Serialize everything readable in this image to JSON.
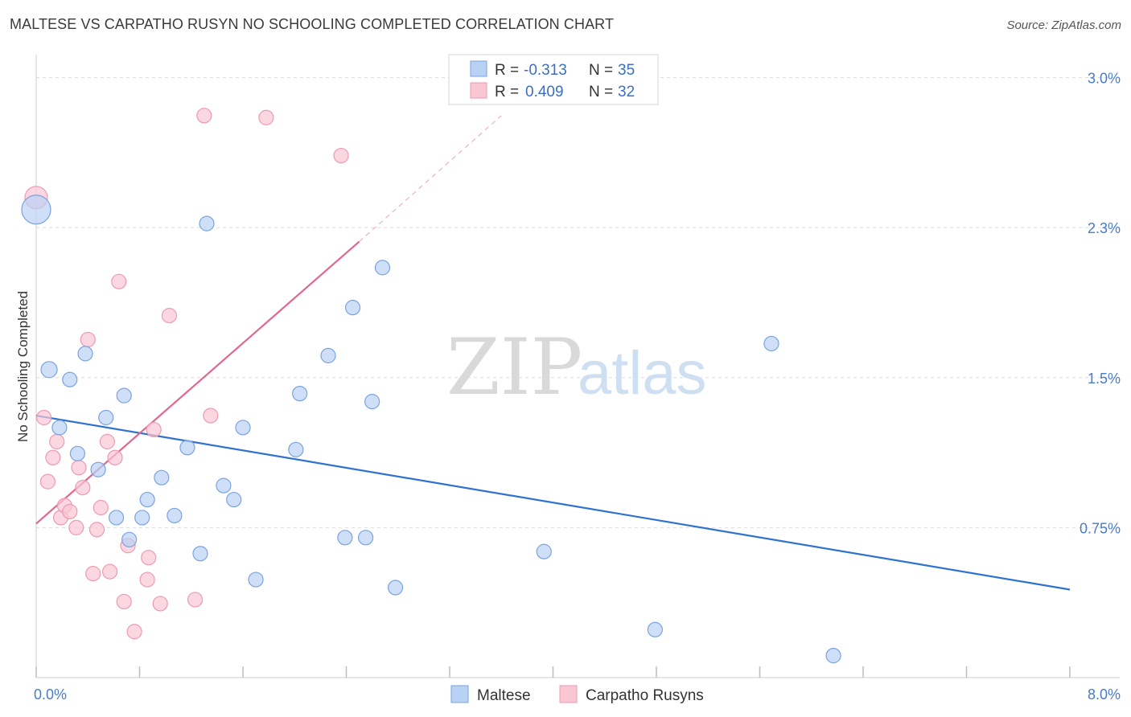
{
  "title": "MALTESE VS CARPATHO RUSYN NO SCHOOLING COMPLETED CORRELATION CHART",
  "source": "Source: ZipAtlas.com",
  "watermark": {
    "zip": "ZIP",
    "atlas": "atlas"
  },
  "colors": {
    "maltese_fill": "#b9d1f3",
    "maltese_stroke": "#7aa3e0",
    "maltese_line": "#2f72cf",
    "carpatho_fill": "#f9c6d4",
    "carpatho_stroke": "#ee9ab2",
    "carpatho_line": "#e2678f",
    "tick_text": "#4a7cc7",
    "grid": "#dcdcdc"
  },
  "legend": {
    "maltese": {
      "r_label": "R =",
      "r_value": "-0.313",
      "n_label": "N =",
      "n_value": "35"
    },
    "carpatho": {
      "r_label": "R =",
      "r_value": "0.409",
      "n_label": "N =",
      "n_value": "32"
    }
  },
  "bottom_legend": {
    "maltese": "Maltese",
    "carpatho": "Carpatho Rusyns"
  },
  "chart_data": {
    "type": "scatter",
    "title": "MALTESE VS CARPATHO RUSYN NO SCHOOLING COMPLETED CORRELATION CHART",
    "xlabel": "",
    "ylabel": "No Schooling Completed",
    "xlim": [
      0,
      8.0
    ],
    "ylim": [
      0,
      3.0
    ],
    "x_tick_labels": [
      {
        "value": 0,
        "label": "0.0%"
      },
      {
        "value": 8.0,
        "label": "8.0%"
      }
    ],
    "y_tick_labels": [
      {
        "value": 0.75,
        "label": "0.75%"
      },
      {
        "value": 1.5,
        "label": "1.5%"
      },
      {
        "value": 2.25,
        "label": "2.3%"
      },
      {
        "value": 3.0,
        "label": "3.0%"
      }
    ],
    "grid": true,
    "legend_position": "top-center",
    "series": [
      {
        "name": "Maltese",
        "r": -0.313,
        "n": 35,
        "trend": {
          "x": [
            0.0,
            8.0
          ],
          "y": [
            1.31,
            0.44
          ]
        },
        "points": [
          [
            0.0,
            2.34,
            18
          ],
          [
            0.1,
            1.54,
            10
          ],
          [
            0.26,
            1.49,
            9
          ],
          [
            0.18,
            1.25,
            9
          ],
          [
            0.32,
            1.12,
            9
          ],
          [
            0.38,
            1.62,
            9
          ],
          [
            0.54,
            1.3,
            9
          ],
          [
            0.48,
            1.04,
            9
          ],
          [
            0.62,
            0.8,
            9
          ],
          [
            0.68,
            1.41,
            9
          ],
          [
            0.72,
            0.69,
            9
          ],
          [
            0.82,
            0.8,
            9
          ],
          [
            0.86,
            0.89,
            9
          ],
          [
            0.97,
            1.0,
            9
          ],
          [
            1.07,
            0.81,
            9
          ],
          [
            1.17,
            1.15,
            9
          ],
          [
            1.27,
            0.62,
            9
          ],
          [
            1.32,
            2.27,
            9
          ],
          [
            1.45,
            0.96,
            9
          ],
          [
            1.53,
            0.89,
            9
          ],
          [
            1.6,
            1.25,
            9
          ],
          [
            1.7,
            0.49,
            9
          ],
          [
            2.01,
            1.14,
            9
          ],
          [
            2.04,
            1.42,
            9
          ],
          [
            2.26,
            1.61,
            9
          ],
          [
            2.39,
            0.7,
            9
          ],
          [
            2.45,
            1.85,
            9
          ],
          [
            2.55,
            0.7,
            9
          ],
          [
            2.6,
            1.38,
            9
          ],
          [
            2.68,
            2.05,
            9
          ],
          [
            2.78,
            0.45,
            9
          ],
          [
            3.93,
            0.63,
            9
          ],
          [
            5.69,
            1.67,
            9
          ],
          [
            4.79,
            0.24,
            9
          ],
          [
            6.17,
            0.11,
            9
          ]
        ]
      },
      {
        "name": "Carpatho Rusyns",
        "r": 0.409,
        "n": 32,
        "trend": {
          "x": [
            0.0,
            2.5
          ],
          "y": [
            0.77,
            2.18
          ]
        },
        "trend_dashed": {
          "x": [
            2.5,
            3.6
          ],
          "y": [
            2.18,
            2.81
          ]
        },
        "points": [
          [
            0.0,
            2.4,
            14
          ],
          [
            0.06,
            1.3,
            9
          ],
          [
            0.09,
            0.98,
            9
          ],
          [
            0.13,
            1.1,
            9
          ],
          [
            0.16,
            1.18,
            9
          ],
          [
            0.19,
            0.8,
            9
          ],
          [
            0.22,
            0.86,
            9
          ],
          [
            0.26,
            0.83,
            9
          ],
          [
            0.31,
            0.75,
            9
          ],
          [
            0.33,
            1.05,
            9
          ],
          [
            0.36,
            0.95,
            9
          ],
          [
            0.4,
            1.69,
            9
          ],
          [
            0.44,
            0.52,
            9
          ],
          [
            0.47,
            0.74,
            9
          ],
          [
            0.5,
            0.85,
            9
          ],
          [
            0.55,
            1.18,
            9
          ],
          [
            0.57,
            0.53,
            9
          ],
          [
            0.61,
            1.1,
            9
          ],
          [
            0.64,
            1.98,
            9
          ],
          [
            0.68,
            0.38,
            9
          ],
          [
            0.71,
            0.66,
            9
          ],
          [
            0.76,
            0.23,
            9
          ],
          [
            0.86,
            0.49,
            9
          ],
          [
            0.87,
            0.6,
            9
          ],
          [
            0.91,
            1.24,
            9
          ],
          [
            0.96,
            0.37,
            9
          ],
          [
            1.03,
            1.81,
            9
          ],
          [
            1.23,
            0.39,
            9
          ],
          [
            1.3,
            2.81,
            9
          ],
          [
            1.35,
            1.31,
            9
          ],
          [
            1.78,
            2.8,
            9
          ],
          [
            2.36,
            2.61,
            9
          ]
        ]
      }
    ]
  }
}
